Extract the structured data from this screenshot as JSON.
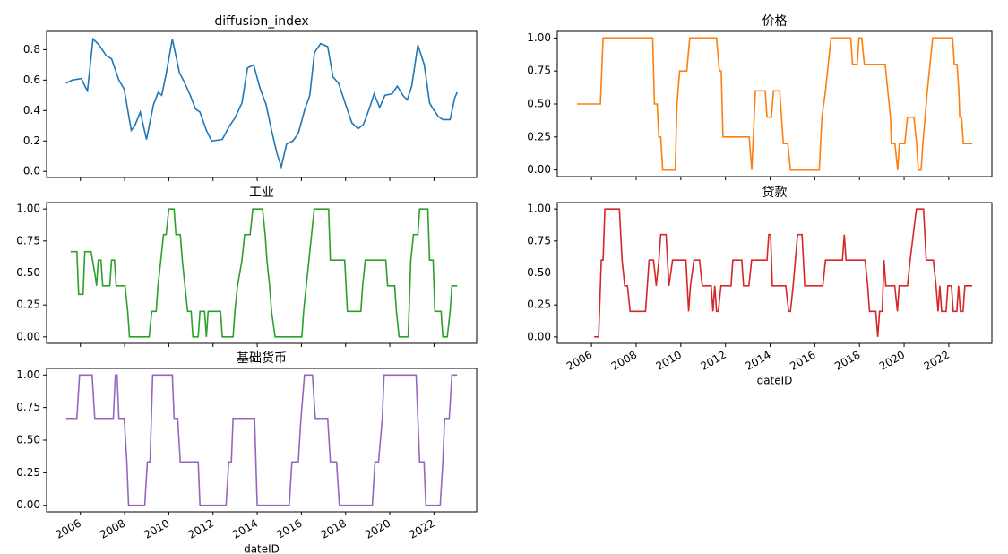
{
  "chart_data": [
    {
      "type": "line",
      "title": "diffusion_index",
      "color": "#1f77b4",
      "x": [
        2005.35,
        2005.64,
        2006.04,
        2006.24,
        2006.32,
        2006.57,
        2006.85,
        2007.17,
        2007.41,
        2007.74,
        2007.98,
        2008.3,
        2008.46,
        2008.71,
        2008.99,
        2009.31,
        2009.52,
        2009.68,
        2009.88,
        2010.16,
        2010.48,
        2010.69,
        2010.97,
        2011.21,
        2011.41,
        2011.7,
        2011.94,
        2012.42,
        2012.75,
        2012.99,
        2013.31,
        2013.56,
        2013.84,
        2014.12,
        2014.4,
        2014.65,
        2014.89,
        2015.09,
        2015.33,
        2015.62,
        2015.86,
        2016.14,
        2016.38,
        2016.59,
        2016.87,
        2017.19,
        2017.43,
        2017.68,
        2018.0,
        2018.28,
        2018.57,
        2018.81,
        2019.09,
        2019.29,
        2019.54,
        2019.78,
        2020.1,
        2020.34,
        2020.59,
        2020.79,
        2020.99,
        2021.27,
        2021.56,
        2021.8,
        2021.96,
        2022.2,
        2022.4,
        2022.73,
        2022.93,
        2023.05
      ],
      "values": [
        0.58,
        0.6,
        0.61,
        0.55,
        0.53,
        0.87,
        0.83,
        0.76,
        0.74,
        0.6,
        0.54,
        0.27,
        0.3,
        0.39,
        0.21,
        0.44,
        0.52,
        0.5,
        0.64,
        0.87,
        0.65,
        0.59,
        0.5,
        0.41,
        0.39,
        0.27,
        0.2,
        0.21,
        0.3,
        0.35,
        0.45,
        0.68,
        0.7,
        0.55,
        0.44,
        0.27,
        0.12,
        0.03,
        0.18,
        0.2,
        0.25,
        0.4,
        0.5,
        0.78,
        0.84,
        0.82,
        0.62,
        0.58,
        0.44,
        0.32,
        0.28,
        0.31,
        0.42,
        0.51,
        0.42,
        0.5,
        0.51,
        0.56,
        0.5,
        0.47,
        0.56,
        0.83,
        0.7,
        0.45,
        0.41,
        0.36,
        0.34,
        0.34,
        0.48,
        0.52
      ],
      "xlim": [
        2004.47,
        2023.93
      ],
      "ylim": [
        -0.04,
        0.92
      ],
      "xticks": [
        2006,
        2008,
        2010,
        2012,
        2014,
        2016,
        2018,
        2020,
        2022
      ],
      "yticks": [
        {
          "value": 0,
          "label": "0.0"
        },
        0.2,
        0.4,
        0.6,
        0.8
      ]
    },
    {
      "type": "line",
      "title": "价格",
      "color": "#ff7f0e",
      "x": [
        2005.35,
        2006.4,
        2006.52,
        2008.74,
        2008.82,
        2008.94,
        2009.02,
        2009.1,
        2009.19,
        2009.75,
        2009.83,
        2009.95,
        2010.27,
        2010.4,
        2011.6,
        2011.73,
        2011.81,
        2011.89,
        2013.06,
        2013.18,
        2013.34,
        2013.78,
        2013.86,
        2014.06,
        2014.15,
        2014.43,
        2014.51,
        2014.59,
        2014.79,
        2014.91,
        2016.2,
        2016.32,
        2016.48,
        2016.6,
        2016.73,
        2017.61,
        2017.69,
        2017.9,
        2017.98,
        2018.1,
        2018.22,
        2019.15,
        2019.27,
        2019.39,
        2019.43,
        2019.59,
        2019.71,
        2019.79,
        2020.03,
        2020.15,
        2020.44,
        2020.56,
        2020.64,
        2020.76,
        2020.84,
        2021.04,
        2021.16,
        2021.28,
        2022.17,
        2022.25,
        2022.37,
        2022.45,
        2022.49,
        2022.57,
        2022.65,
        2023.06
      ],
      "values": [
        0.5,
        0.5,
        1.0,
        1.0,
        0.5,
        0.5,
        0.25,
        0.25,
        0,
        0,
        0.5,
        0.75,
        0.75,
        1.0,
        1.0,
        0.75,
        0.75,
        0.25,
        0.25,
        0,
        0.6,
        0.6,
        0.4,
        0.4,
        0.6,
        0.6,
        0.4,
        0.2,
        0.2,
        0,
        0,
        0.4,
        0.6,
        0.8,
        1.0,
        1.0,
        0.8,
        0.8,
        1.0,
        1.0,
        0.8,
        0.8,
        0.6,
        0.4,
        0.2,
        0.2,
        0,
        0.2,
        0.2,
        0.4,
        0.4,
        0.2,
        0,
        0,
        0.2,
        0.6,
        0.8,
        1.0,
        1.0,
        0.8,
        0.8,
        0.6,
        0.4,
        0.4,
        0.2,
        0.2
      ],
      "xlim": [
        2004.47,
        2023.93
      ],
      "ylim": [
        -0.05,
        1.05
      ],
      "xticks": [
        2006,
        2008,
        2010,
        2012,
        2014,
        2016,
        2018,
        2020,
        2022
      ],
      "yticks": [
        {
          "value": 0,
          "label": "0.00"
        },
        0.25,
        {
          "value": 0.5,
          "label": "0.50"
        },
        0.75,
        {
          "value": 1,
          "label": "1.00"
        }
      ]
    },
    {
      "type": "line",
      "title": "工业",
      "color": "#2ca02c",
      "x": [
        2005.56,
        2005.84,
        2005.92,
        2006.12,
        2006.2,
        2006.48,
        2006.65,
        2006.73,
        2006.81,
        2006.93,
        2007.01,
        2007.33,
        2007.41,
        2007.54,
        2007.62,
        2008.02,
        2008.14,
        2008.22,
        2009.11,
        2009.23,
        2009.43,
        2009.51,
        2009.64,
        2009.76,
        2009.88,
        2010.0,
        2010.24,
        2010.32,
        2010.52,
        2010.61,
        2010.73,
        2010.85,
        2011.01,
        2011.09,
        2011.33,
        2011.41,
        2011.62,
        2011.7,
        2011.78,
        2012.34,
        2012.42,
        2012.91,
        2012.99,
        2013.11,
        2013.31,
        2013.43,
        2013.68,
        2013.8,
        2014.24,
        2014.36,
        2014.44,
        2014.56,
        2014.65,
        2014.81,
        2016.02,
        2016.1,
        2016.22,
        2016.34,
        2016.46,
        2016.58,
        2017.23,
        2017.31,
        2017.96,
        2018.08,
        2018.69,
        2018.77,
        2018.89,
        2019.82,
        2019.9,
        2020.22,
        2020.3,
        2020.42,
        2020.83,
        2020.95,
        2021.07,
        2021.27,
        2021.35,
        2021.72,
        2021.8,
        2021.96,
        2022.04,
        2022.32,
        2022.4,
        2022.6,
        2022.73,
        2022.81,
        2023.05
      ],
      "values": [
        0.6667,
        0.6667,
        0.3333,
        0.3333,
        0.6667,
        0.6667,
        0.5,
        0.4,
        0.6,
        0.6,
        0.4,
        0.4,
        0.6,
        0.6,
        0.4,
        0.4,
        0.2,
        0,
        0,
        0.2,
        0.2,
        0.4,
        0.6,
        0.8,
        0.8,
        1.0,
        1.0,
        0.8,
        0.8,
        0.6,
        0.4,
        0.2,
        0.2,
        0,
        0,
        0.2,
        0.2,
        0,
        0.2,
        0.2,
        0,
        0,
        0.2,
        0.4,
        0.6,
        0.8,
        0.8,
        1.0,
        1.0,
        0.8,
        0.6,
        0.4,
        0.2,
        0,
        0,
        0.2,
        0.4,
        0.6,
        0.8,
        1.0,
        1.0,
        0.6,
        0.6,
        0.2,
        0.2,
        0.4,
        0.6,
        0.6,
        0.4,
        0.4,
        0.2,
        0,
        0,
        0.6,
        0.8,
        0.8,
        1.0,
        1.0,
        0.6,
        0.6,
        0.2,
        0.2,
        0,
        0,
        0.2,
        0.4,
        0.4
      ],
      "xlim": [
        2004.47,
        2023.93
      ],
      "ylim": [
        -0.05,
        1.05
      ],
      "xticks": [
        2006,
        2008,
        2010,
        2012,
        2014,
        2016,
        2018,
        2020,
        2022
      ],
      "yticks": [
        {
          "value": 0,
          "label": "0.00"
        },
        0.25,
        {
          "value": 0.5,
          "label": "0.50"
        },
        0.75,
        {
          "value": 1,
          "label": "1.00"
        }
      ]
    },
    {
      "type": "line",
      "title": "贷款",
      "color": "#d62728",
      "xlabel": "dateID",
      "x": [
        2006.12,
        2006.32,
        2006.44,
        2006.52,
        2006.6,
        2007.25,
        2007.37,
        2007.49,
        2007.61,
        2007.73,
        2008.42,
        2008.58,
        2008.78,
        2008.9,
        2009.02,
        2009.1,
        2009.34,
        2009.47,
        2009.63,
        2010.23,
        2010.35,
        2010.43,
        2010.59,
        2010.84,
        2010.96,
        2011.36,
        2011.44,
        2011.52,
        2011.6,
        2011.68,
        2011.8,
        2012.25,
        2012.33,
        2012.73,
        2012.81,
        2013.05,
        2013.17,
        2013.86,
        2013.94,
        2014.02,
        2014.1,
        2014.7,
        2014.83,
        2014.91,
        2015.03,
        2015.23,
        2015.43,
        2015.55,
        2016.36,
        2016.48,
        2017.24,
        2017.32,
        2017.4,
        2018.25,
        2018.37,
        2018.45,
        2018.73,
        2018.82,
        2018.9,
        2019.02,
        2019.1,
        2019.18,
        2019.58,
        2019.7,
        2019.78,
        2020.15,
        2020.27,
        2020.55,
        2020.87,
        2020.99,
        2021.31,
        2021.43,
        2021.52,
        2021.6,
        2021.68,
        2021.88,
        2021.96,
        2022.12,
        2022.2,
        2022.36,
        2022.44,
        2022.52,
        2022.64,
        2022.72,
        2023.05
      ],
      "values": [
        0,
        0,
        0.6,
        0.6,
        1.0,
        1.0,
        0.6,
        0.4,
        0.4,
        0.2,
        0.2,
        0.6,
        0.6,
        0.4,
        0.6,
        0.8,
        0.8,
        0.4,
        0.6,
        0.6,
        0.2,
        0.4,
        0.6,
        0.6,
        0.4,
        0.4,
        0.2,
        0.4,
        0.2,
        0.2,
        0.4,
        0.4,
        0.6,
        0.6,
        0.4,
        0.4,
        0.6,
        0.6,
        0.8,
        0.8,
        0.4,
        0.4,
        0.2,
        0.2,
        0.4,
        0.8,
        0.8,
        0.4,
        0.4,
        0.6,
        0.6,
        0.8,
        0.6,
        0.6,
        0.4,
        0.2,
        0.2,
        0,
        0.2,
        0.2,
        0.6,
        0.4,
        0.4,
        0.2,
        0.4,
        0.4,
        0.6,
        1.0,
        1.0,
        0.6,
        0.6,
        0.4,
        0.2,
        0.4,
        0.2,
        0.2,
        0.4,
        0.4,
        0.2,
        0.2,
        0.4,
        0.2,
        0.2,
        0.4,
        0.4
      ],
      "xlim": [
        2004.47,
        2023.93
      ],
      "ylim": [
        -0.05,
        1.05
      ],
      "xticks": [
        2006,
        2008,
        2010,
        2012,
        2014,
        2016,
        2018,
        2020,
        2022
      ],
      "yticks": [
        {
          "value": 0,
          "label": "0.00"
        },
        0.25,
        {
          "value": 0.5,
          "label": "0.50"
        },
        0.75,
        {
          "value": 1,
          "label": "1.00"
        }
      ]
    },
    {
      "type": "line",
      "title": "基础货币",
      "color": "#9467bd",
      "xlabel": "dateID",
      "x": [
        2005.35,
        2005.84,
        2005.96,
        2006.53,
        2006.65,
        2007.41,
        2007.49,
        2007.58,
        2007.66,
        2007.74,
        2007.98,
        2008.1,
        2008.18,
        2008.91,
        2009.03,
        2009.15,
        2009.27,
        2010.16,
        2010.24,
        2010.4,
        2010.52,
        2011.33,
        2011.41,
        2012.59,
        2012.71,
        2012.83,
        2012.91,
        2013.88,
        2014.0,
        2015.45,
        2015.57,
        2015.86,
        2015.98,
        2016.14,
        2016.5,
        2016.63,
        2017.19,
        2017.31,
        2017.59,
        2017.72,
        2019.21,
        2019.33,
        2019.49,
        2019.66,
        2019.74,
        2021.19,
        2021.27,
        2021.35,
        2021.55,
        2021.63,
        2022.28,
        2022.4,
        2022.48,
        2022.69,
        2022.81,
        2023.05
      ],
      "values": [
        0.6667,
        0.6667,
        1.0,
        1.0,
        0.6667,
        0.6667,
        0.6667,
        1.0,
        1.0,
        0.6667,
        0.6667,
        0.3333,
        0,
        0,
        0.3333,
        0.3333,
        1.0,
        1.0,
        0.6667,
        0.6667,
        0.3333,
        0.3333,
        0,
        0,
        0.3333,
        0.3333,
        0.6667,
        0.6667,
        0,
        0,
        0.3333,
        0.3333,
        0.6667,
        1.0,
        1.0,
        0.6667,
        0.6667,
        0.3333,
        0.3333,
        0,
        0,
        0.3333,
        0.3333,
        0.6667,
        1.0,
        1.0,
        0.6667,
        0.3333,
        0.3333,
        0,
        0,
        0.3333,
        0.6667,
        0.6667,
        1.0,
        1.0
      ],
      "xlim": [
        2004.47,
        2023.93
      ],
      "ylim": [
        -0.05,
        1.05
      ],
      "xticks": [
        2006,
        2008,
        2010,
        2012,
        2014,
        2016,
        2018,
        2020,
        2022
      ],
      "yticks": [
        {
          "value": 0,
          "label": "0.00"
        },
        0.25,
        {
          "value": 0.5,
          "label": "0.50"
        },
        0.75,
        {
          "value": 1,
          "label": "1.00"
        }
      ]
    }
  ]
}
